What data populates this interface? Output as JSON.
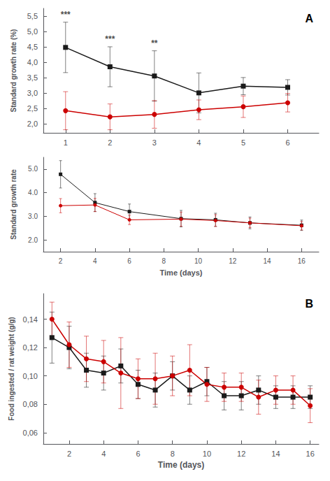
{
  "chart_data": [
    {
      "type": "line",
      "ylabel": "Standard growth rate (%)",
      "label": "A",
      "x": [
        1,
        2,
        3,
        4,
        5,
        6
      ],
      "series": [
        {
          "color": "#1a1a1a",
          "marker": "square",
          "values": [
            4.48,
            3.85,
            3.55,
            3.0,
            3.22,
            3.18
          ],
          "errors": [
            0.82,
            0.65,
            0.82,
            0.65,
            0.28,
            0.25
          ]
        },
        {
          "color": "#cc0000",
          "marker": "circle",
          "values": [
            2.42,
            2.22,
            2.3,
            2.45,
            2.55,
            2.68
          ],
          "errors": [
            0.62,
            0.42,
            0.45,
            0.32,
            0.35,
            0.3
          ]
        }
      ],
      "annotations": [
        {
          "x": 1,
          "y": 5.42,
          "text": "***"
        },
        {
          "x": 2,
          "y": 4.62,
          "text": "***"
        },
        {
          "x": 3,
          "y": 4.48,
          "text": "**"
        }
      ],
      "xlim": [
        0.5,
        6.7
      ],
      "xticks": [
        1,
        2,
        3,
        4,
        5,
        6
      ],
      "ylim": [
        1.7,
        5.75
      ],
      "yticks": [
        {
          "value": 2.0,
          "label": "2,0"
        },
        {
          "value": 2.5,
          "label": "2,5"
        },
        {
          "value": 3.0,
          "label": "3,0"
        },
        {
          "value": 3.5,
          "label": "3,5"
        },
        {
          "value": 4.0,
          "label": "4,0"
        },
        {
          "value": 4.5,
          "label": "4,5"
        },
        {
          "value": 5.0,
          "label": "5,0"
        },
        {
          "value": 5.5,
          "label": "5,5"
        }
      ],
      "grid": false
    },
    {
      "type": "line",
      "xlabel": "Time (days)",
      "ylabel": "Standard growth rate",
      "x": [
        2,
        4,
        6,
        9,
        11,
        13,
        16
      ],
      "series": [
        {
          "color": "#1a1a1a",
          "marker": "square",
          "values": [
            4.78,
            3.58,
            3.2,
            2.9,
            2.85,
            2.72,
            2.62
          ],
          "errors": [
            0.58,
            0.38,
            0.32,
            0.35,
            0.28,
            0.25,
            0.22
          ]
        },
        {
          "color": "#cc0000",
          "marker": "circle",
          "values": [
            3.45,
            3.48,
            2.85,
            2.88,
            2.82,
            2.72,
            2.6
          ],
          "errors": [
            0.3,
            0.28,
            0.2,
            0.3,
            0.25,
            0.2,
            0.18
          ]
        }
      ],
      "xlim": [
        1,
        17
      ],
      "xticks": [
        2,
        4,
        6,
        8,
        10,
        12,
        14,
        16
      ],
      "ylim": [
        1.5,
        5.5
      ],
      "yticks": [
        {
          "value": 2.0,
          "label": "2.0"
        },
        {
          "value": 3.0,
          "label": "3.0"
        },
        {
          "value": 4.0,
          "label": "4.0"
        },
        {
          "value": 5.0,
          "label": "5.0"
        }
      ],
      "grid": false
    },
    {
      "type": "line",
      "xlabel": "Time (days)",
      "ylabel": "Food ingested / rat weight (g/g)",
      "label": "B",
      "x": [
        1,
        2,
        3,
        4,
        5,
        6,
        7,
        8,
        9,
        10,
        11,
        12,
        13,
        14,
        15,
        16
      ],
      "series": [
        {
          "color": "#1a1a1a",
          "marker": "square",
          "values": [
            0.127,
            0.12,
            0.104,
            0.102,
            0.107,
            0.094,
            0.09,
            0.1,
            0.09,
            0.096,
            0.086,
            0.086,
            0.09,
            0.085,
            0.085,
            0.085
          ],
          "errors": [
            0.018,
            0.015,
            0.012,
            0.012,
            0.012,
            0.01,
            0.012,
            0.01,
            0.01,
            0.01,
            0.01,
            0.01,
            0.01,
            0.008,
            0.008,
            0.008
          ]
        },
        {
          "color": "#cc0000",
          "marker": "circle",
          "values": [
            0.14,
            0.122,
            0.112,
            0.11,
            0.102,
            0.098,
            0.098,
            0.1,
            0.104,
            0.094,
            0.092,
            0.092,
            0.085,
            0.09,
            0.09,
            0.079
          ],
          "errors": [
            0.012,
            0.016,
            0.016,
            0.015,
            0.025,
            0.014,
            0.018,
            0.014,
            0.018,
            0.012,
            0.01,
            0.01,
            0.012,
            0.01,
            0.01,
            0.012
          ]
        }
      ],
      "xlim": [
        0.5,
        16.5
      ],
      "xticks": [
        2,
        4,
        6,
        8,
        10,
        12,
        14,
        16
      ],
      "ylim": [
        0.052,
        0.158
      ],
      "yticks": [
        {
          "value": 0.06,
          "label": "0,06"
        },
        {
          "value": 0.08,
          "label": "0,08"
        },
        {
          "value": 0.1,
          "label": "0,10"
        },
        {
          "value": 0.12,
          "label": "0,12"
        },
        {
          "value": 0.14,
          "label": "0,14"
        }
      ],
      "grid": false
    }
  ]
}
